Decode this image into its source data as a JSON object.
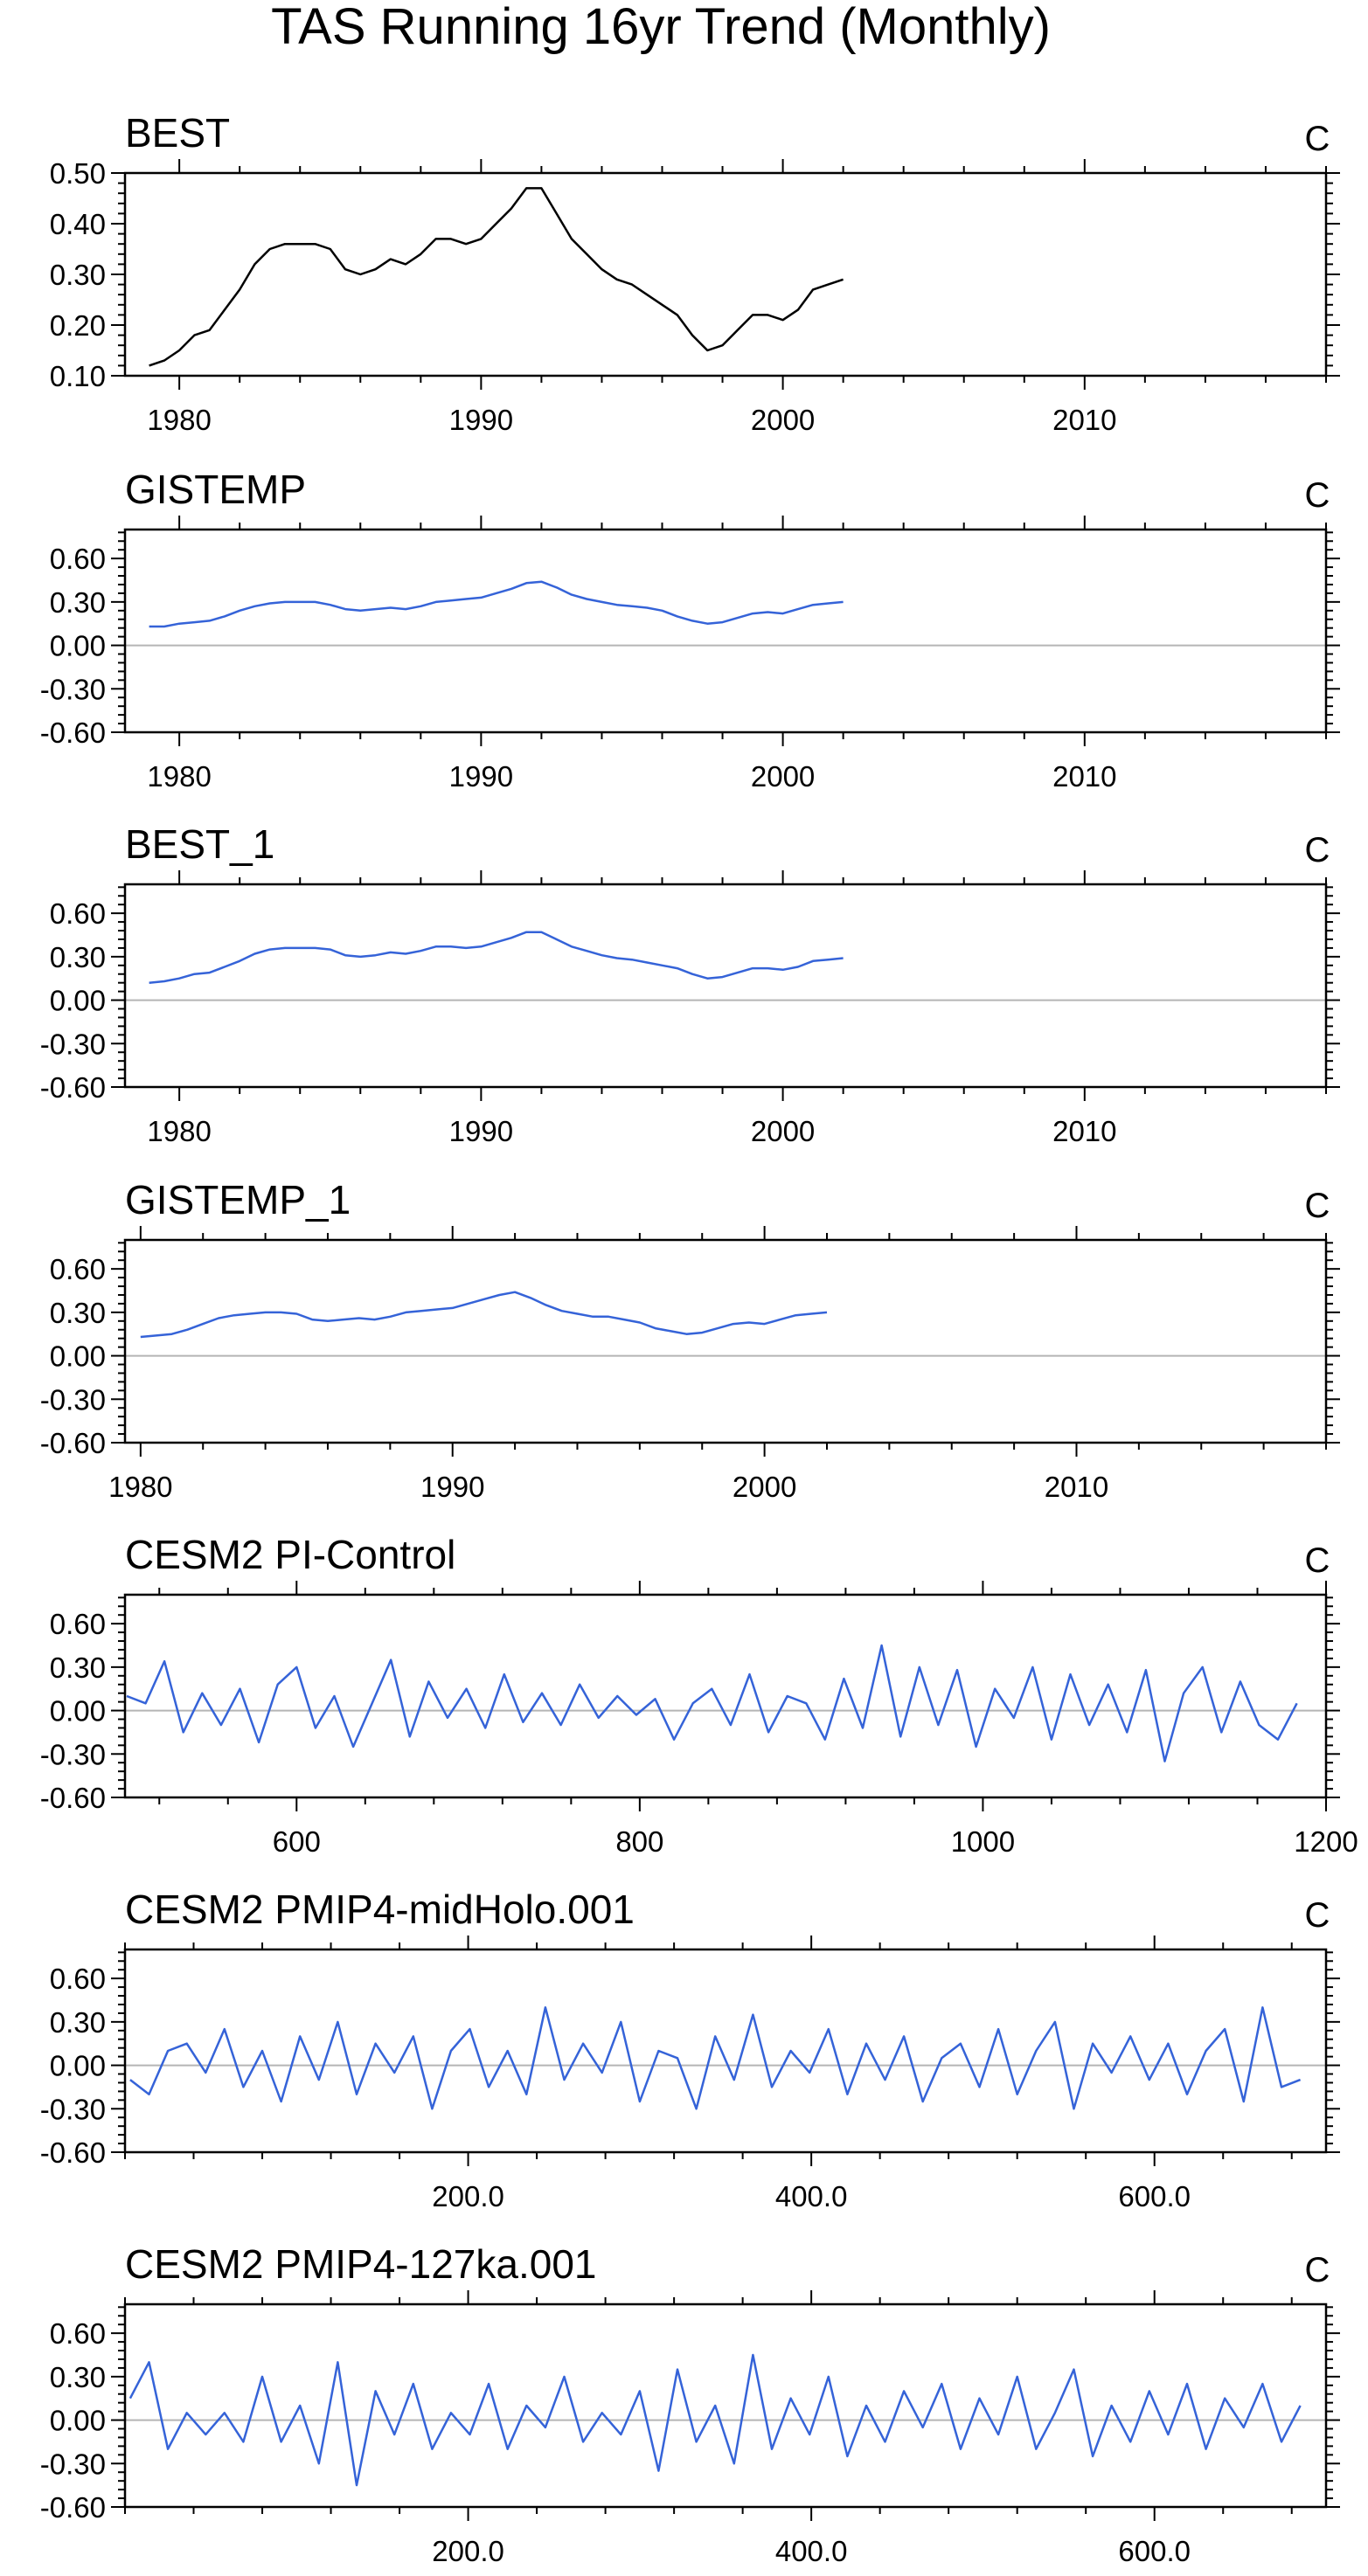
{
  "title": "TAS Running 16yr Trend (Monthly)",
  "colors": {
    "black": "#000000",
    "blue": "#3563d8",
    "zero_line": "#b5b5b5",
    "frame": "#000000"
  },
  "chart_data": [
    {
      "type": "line",
      "title": "BEST",
      "unit": "C",
      "color": "#000000",
      "xlim": [
        1978.2,
        2018.0
      ],
      "ylim": [
        0.1,
        0.5
      ],
      "yticks": [
        0.1,
        0.2,
        0.3,
        0.4,
        0.5
      ],
      "ytick_labels": [
        "0.10",
        "0.20",
        "0.30",
        "0.40",
        "0.50"
      ],
      "xticks": [
        1980,
        1990,
        2000,
        2010
      ],
      "xtick_labels": [
        "1980",
        "1990",
        "2000",
        "2010"
      ],
      "zero_line": false,
      "x": [
        1979.0,
        1979.5,
        1980.0,
        1980.5,
        1981.0,
        1981.5,
        1982.0,
        1982.5,
        1983.0,
        1983.5,
        1984.0,
        1984.5,
        1985.0,
        1985.5,
        1986.0,
        1986.5,
        1987.0,
        1987.5,
        1988.0,
        1988.5,
        1989.0,
        1989.5,
        1990.0,
        1990.5,
        1991.0,
        1991.5,
        1992.0,
        1992.5,
        1993.0,
        1993.5,
        1994.0,
        1994.5,
        1995.0,
        1995.5,
        1996.0,
        1996.5,
        1997.0,
        1997.5,
        1998.0,
        1998.5,
        1999.0,
        1999.5,
        2000.0,
        2000.5,
        2001.0,
        2001.5,
        2002.0
      ],
      "y": [
        0.12,
        0.13,
        0.15,
        0.18,
        0.19,
        0.23,
        0.27,
        0.32,
        0.35,
        0.36,
        0.36,
        0.36,
        0.35,
        0.31,
        0.3,
        0.31,
        0.33,
        0.32,
        0.34,
        0.37,
        0.37,
        0.36,
        0.37,
        0.4,
        0.43,
        0.47,
        0.47,
        0.42,
        0.37,
        0.34,
        0.31,
        0.29,
        0.28,
        0.26,
        0.24,
        0.22,
        0.18,
        0.15,
        0.16,
        0.19,
        0.22,
        0.22,
        0.21,
        0.23,
        0.27,
        0.28,
        0.29
      ]
    },
    {
      "type": "line",
      "title": "GISTEMP",
      "unit": "C",
      "color": "#3563d8",
      "xlim": [
        1978.2,
        2018.0
      ],
      "ylim": [
        -0.6,
        0.8
      ],
      "yticks": [
        -0.6,
        -0.3,
        0.0,
        0.3,
        0.6
      ],
      "ytick_labels": [
        "-0.60",
        "-0.30",
        "0.00",
        "0.30",
        "0.60"
      ],
      "xticks": [
        1980,
        1990,
        2000,
        2010
      ],
      "xtick_labels": [
        "1980",
        "1990",
        "2000",
        "2010"
      ],
      "zero_line": true,
      "x": [
        1979.0,
        1979.5,
        1980.0,
        1980.5,
        1981.0,
        1981.5,
        1982.0,
        1982.5,
        1983.0,
        1983.5,
        1984.0,
        1984.5,
        1985.0,
        1985.5,
        1986.0,
        1986.5,
        1987.0,
        1987.5,
        1988.0,
        1988.5,
        1989.0,
        1989.5,
        1990.0,
        1990.5,
        1991.0,
        1991.5,
        1992.0,
        1992.5,
        1993.0,
        1993.5,
        1994.0,
        1994.5,
        1995.0,
        1995.5,
        1996.0,
        1996.5,
        1997.0,
        1997.5,
        1998.0,
        1998.5,
        1999.0,
        1999.5,
        2000.0,
        2000.5,
        2001.0,
        2001.5,
        2002.0
      ],
      "y": [
        0.13,
        0.13,
        0.15,
        0.16,
        0.17,
        0.2,
        0.24,
        0.27,
        0.29,
        0.3,
        0.3,
        0.3,
        0.28,
        0.25,
        0.24,
        0.25,
        0.26,
        0.25,
        0.27,
        0.3,
        0.31,
        0.32,
        0.33,
        0.36,
        0.39,
        0.43,
        0.44,
        0.4,
        0.35,
        0.32,
        0.3,
        0.28,
        0.27,
        0.26,
        0.24,
        0.2,
        0.17,
        0.15,
        0.16,
        0.19,
        0.22,
        0.23,
        0.22,
        0.25,
        0.28,
        0.29,
        0.3
      ]
    },
    {
      "type": "line",
      "title": "BEST_1",
      "unit": "C",
      "color": "#3563d8",
      "xlim": [
        1978.2,
        2018.0
      ],
      "ylim": [
        -0.6,
        0.8
      ],
      "yticks": [
        -0.6,
        -0.3,
        0.0,
        0.3,
        0.6
      ],
      "ytick_labels": [
        "-0.60",
        "-0.30",
        "0.00",
        "0.30",
        "0.60"
      ],
      "xticks": [
        1980,
        1990,
        2000,
        2010
      ],
      "xtick_labels": [
        "1980",
        "1990",
        "2000",
        "2010"
      ],
      "zero_line": true,
      "x": [
        1979.0,
        1979.5,
        1980.0,
        1980.5,
        1981.0,
        1981.5,
        1982.0,
        1982.5,
        1983.0,
        1983.5,
        1984.0,
        1984.5,
        1985.0,
        1985.5,
        1986.0,
        1986.5,
        1987.0,
        1987.5,
        1988.0,
        1988.5,
        1989.0,
        1989.5,
        1990.0,
        1990.5,
        1991.0,
        1991.5,
        1992.0,
        1992.5,
        1993.0,
        1993.5,
        1994.0,
        1994.5,
        1995.0,
        1995.5,
        1996.0,
        1996.5,
        1997.0,
        1997.5,
        1998.0,
        1998.5,
        1999.0,
        1999.5,
        2000.0,
        2000.5,
        2001.0,
        2001.5,
        2002.0
      ],
      "y": [
        0.12,
        0.13,
        0.15,
        0.18,
        0.19,
        0.23,
        0.27,
        0.32,
        0.35,
        0.36,
        0.36,
        0.36,
        0.35,
        0.31,
        0.3,
        0.31,
        0.33,
        0.32,
        0.34,
        0.37,
        0.37,
        0.36,
        0.37,
        0.4,
        0.43,
        0.47,
        0.47,
        0.42,
        0.37,
        0.34,
        0.31,
        0.29,
        0.28,
        0.26,
        0.24,
        0.22,
        0.18,
        0.15,
        0.16,
        0.19,
        0.22,
        0.22,
        0.21,
        0.23,
        0.27,
        0.28,
        0.29
      ]
    },
    {
      "type": "line",
      "title": "GISTEMP_1",
      "unit": "C",
      "color": "#3563d8",
      "xlim": [
        1979.5,
        2018.0
      ],
      "ylim": [
        -0.6,
        0.8
      ],
      "yticks": [
        -0.6,
        -0.3,
        0.0,
        0.3,
        0.6
      ],
      "ytick_labels": [
        "-0.60",
        "-0.30",
        "0.00",
        "0.30",
        "0.60"
      ],
      "xticks": [
        1980,
        1990,
        2000,
        2010
      ],
      "xtick_labels": [
        "1980",
        "1990",
        "2000",
        "2010"
      ],
      "zero_line": true,
      "x": [
        1980.0,
        1980.5,
        1981.0,
        1981.5,
        1982.0,
        1982.5,
        1983.0,
        1983.5,
        1984.0,
        1984.5,
        1985.0,
        1985.5,
        1986.0,
        1986.5,
        1987.0,
        1987.5,
        1988.0,
        1988.5,
        1989.0,
        1989.5,
        1990.0,
        1990.5,
        1991.0,
        1991.5,
        1992.0,
        1992.5,
        1993.0,
        1993.5,
        1994.0,
        1994.5,
        1995.0,
        1995.5,
        1996.0,
        1996.5,
        1997.0,
        1997.5,
        1998.0,
        1998.5,
        1999.0,
        1999.5,
        2000.0,
        2000.5,
        2001.0,
        2001.5,
        2002.0
      ],
      "y": [
        0.13,
        0.14,
        0.15,
        0.18,
        0.22,
        0.26,
        0.28,
        0.29,
        0.3,
        0.3,
        0.29,
        0.25,
        0.24,
        0.25,
        0.26,
        0.25,
        0.27,
        0.3,
        0.31,
        0.32,
        0.33,
        0.36,
        0.39,
        0.42,
        0.44,
        0.4,
        0.35,
        0.31,
        0.29,
        0.27,
        0.27,
        0.25,
        0.23,
        0.19,
        0.17,
        0.15,
        0.16,
        0.19,
        0.22,
        0.23,
        0.22,
        0.25,
        0.28,
        0.29,
        0.3
      ]
    },
    {
      "type": "line",
      "title": "CESM2 PI-Control",
      "unit": "C",
      "color": "#3563d8",
      "xlim": [
        500,
        1200
      ],
      "ylim": [
        -0.6,
        0.8
      ],
      "yticks": [
        -0.6,
        -0.3,
        0.0,
        0.3,
        0.6
      ],
      "ytick_labels": [
        "-0.60",
        "-0.30",
        "0.00",
        "0.30",
        "0.60"
      ],
      "xticks": [
        600,
        800,
        1000,
        1200
      ],
      "xtick_labels": [
        "600",
        "800",
        "1000",
        "1200"
      ],
      "zero_line": true,
      "x": [
        501,
        512,
        523,
        534,
        545,
        556,
        567,
        578,
        589,
        600,
        611,
        622,
        633,
        644,
        655,
        666,
        677,
        688,
        699,
        710,
        721,
        732,
        743,
        754,
        765,
        776,
        787,
        798,
        809,
        820,
        831,
        842,
        853,
        864,
        875,
        886,
        897,
        908,
        919,
        930,
        941,
        952,
        963,
        974,
        985,
        996,
        1007,
        1018,
        1029,
        1040,
        1051,
        1062,
        1073,
        1084,
        1095,
        1106,
        1117,
        1128,
        1139,
        1150,
        1161,
        1172,
        1183
      ],
      "y": [
        0.1,
        0.05,
        0.34,
        -0.15,
        0.12,
        -0.1,
        0.15,
        -0.22,
        0.18,
        0.3,
        -0.12,
        0.1,
        -0.25,
        0.05,
        0.35,
        -0.18,
        0.2,
        -0.05,
        0.15,
        -0.12,
        0.25,
        -0.08,
        0.12,
        -0.1,
        0.18,
        -0.05,
        0.1,
        -0.03,
        0.08,
        -0.2,
        0.05,
        0.15,
        -0.1,
        0.25,
        -0.15,
        0.1,
        0.05,
        -0.2,
        0.22,
        -0.12,
        0.45,
        -0.18,
        0.3,
        -0.1,
        0.28,
        -0.25,
        0.15,
        -0.05,
        0.3,
        -0.2,
        0.25,
        -0.1,
        0.18,
        -0.15,
        0.28,
        -0.35,
        0.12,
        0.3,
        -0.15,
        0.2,
        -0.1,
        -0.2,
        0.05
      ]
    },
    {
      "type": "line",
      "title": "CESM2 PMIP4-midHolo.001",
      "unit": "C",
      "color": "#3563d8",
      "xlim": [
        0,
        700
      ],
      "ylim": [
        -0.6,
        0.8
      ],
      "yticks": [
        -0.6,
        -0.3,
        0.0,
        0.3,
        0.6
      ],
      "ytick_labels": [
        "-0.60",
        "-0.30",
        "0.00",
        "0.30",
        "0.60"
      ],
      "xticks": [
        200,
        400,
        600
      ],
      "xtick_labels": [
        "200.0",
        "400.0",
        "600.0"
      ],
      "zero_line": true,
      "x": [
        3,
        14,
        25,
        36,
        47,
        58,
        69,
        80,
        91,
        102,
        113,
        124,
        135,
        146,
        157,
        168,
        179,
        190,
        201,
        212,
        223,
        234,
        245,
        256,
        267,
        278,
        289,
        300,
        311,
        322,
        333,
        344,
        355,
        366,
        377,
        388,
        399,
        410,
        421,
        432,
        443,
        454,
        465,
        476,
        487,
        498,
        509,
        520,
        531,
        542,
        553,
        564,
        575,
        586,
        597,
        608,
        619,
        630,
        641,
        652,
        663,
        674,
        685
      ],
      "y": [
        -0.1,
        -0.2,
        0.1,
        0.15,
        -0.05,
        0.25,
        -0.15,
        0.1,
        -0.25,
        0.2,
        -0.1,
        0.3,
        -0.2,
        0.15,
        -0.05,
        0.2,
        -0.3,
        0.1,
        0.25,
        -0.15,
        0.1,
        -0.2,
        0.4,
        -0.1,
        0.15,
        -0.05,
        0.3,
        -0.25,
        0.1,
        0.05,
        -0.3,
        0.2,
        -0.1,
        0.35,
        -0.15,
        0.1,
        -0.05,
        0.25,
        -0.2,
        0.15,
        -0.1,
        0.2,
        -0.25,
        0.05,
        0.15,
        -0.15,
        0.25,
        -0.2,
        0.1,
        0.3,
        -0.3,
        0.15,
        -0.05,
        0.2,
        -0.1,
        0.15,
        -0.2,
        0.1,
        0.25,
        -0.25,
        0.4,
        -0.15,
        -0.1
      ]
    },
    {
      "type": "line",
      "title": "CESM2 PMIP4-127ka.001",
      "unit": "C",
      "color": "#3563d8",
      "xlim": [
        0,
        700
      ],
      "ylim": [
        -0.6,
        0.8
      ],
      "yticks": [
        -0.6,
        -0.3,
        0.0,
        0.3,
        0.6
      ],
      "ytick_labels": [
        "-0.60",
        "-0.30",
        "0.00",
        "0.30",
        "0.60"
      ],
      "xticks": [
        200,
        400,
        600
      ],
      "xtick_labels": [
        "200.0",
        "400.0",
        "600.0"
      ],
      "zero_line": true,
      "x": [
        3,
        14,
        25,
        36,
        47,
        58,
        69,
        80,
        91,
        102,
        113,
        124,
        135,
        146,
        157,
        168,
        179,
        190,
        201,
        212,
        223,
        234,
        245,
        256,
        267,
        278,
        289,
        300,
        311,
        322,
        333,
        344,
        355,
        366,
        377,
        388,
        399,
        410,
        421,
        432,
        443,
        454,
        465,
        476,
        487,
        498,
        509,
        520,
        531,
        542,
        553,
        564,
        575,
        586,
        597,
        608,
        619,
        630,
        641,
        652,
        663,
        674,
        685
      ],
      "y": [
        0.15,
        0.4,
        -0.2,
        0.05,
        -0.1,
        0.05,
        -0.15,
        0.3,
        -0.15,
        0.1,
        -0.3,
        0.4,
        -0.45,
        0.2,
        -0.1,
        0.25,
        -0.2,
        0.05,
        -0.1,
        0.25,
        -0.2,
        0.1,
        -0.05,
        0.3,
        -0.15,
        0.05,
        -0.1,
        0.2,
        -0.35,
        0.35,
        -0.15,
        0.1,
        -0.3,
        0.45,
        -0.2,
        0.15,
        -0.1,
        0.3,
        -0.25,
        0.1,
        -0.15,
        0.2,
        -0.05,
        0.25,
        -0.2,
        0.15,
        -0.1,
        0.3,
        -0.2,
        0.05,
        0.35,
        -0.25,
        0.1,
        -0.15,
        0.2,
        -0.1,
        0.25,
        -0.2,
        0.15,
        -0.05,
        0.25,
        -0.15,
        0.1
      ]
    }
  ]
}
